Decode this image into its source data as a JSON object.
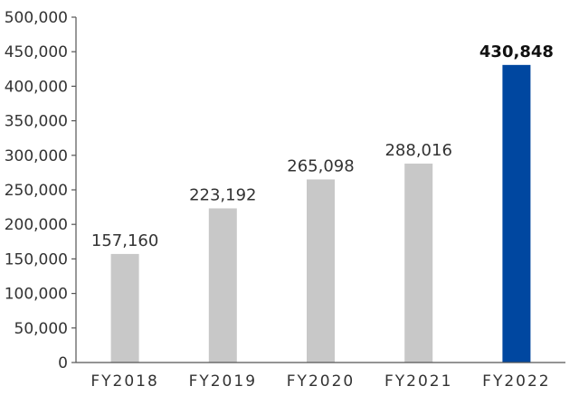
{
  "chart_data": {
    "type": "bar",
    "title": "",
    "xlabel": "",
    "ylabel": "",
    "categories": [
      "FY2018",
      "FY2019",
      "FY2020",
      "FY2021",
      "FY2022"
    ],
    "values": [
      157160,
      223192,
      265098,
      288016,
      430848
    ],
    "value_labels": [
      "157,160",
      "223,192",
      "265,098",
      "288,016",
      "430,848"
    ],
    "highlight_index": 4,
    "ylim": [
      0,
      500000
    ],
    "yticks": [
      0,
      50000,
      100000,
      150000,
      200000,
      250000,
      300000,
      350000,
      400000,
      450000,
      500000
    ],
    "ytick_labels": [
      "0",
      "50,000",
      "100,000",
      "150,000",
      "200,000",
      "250,000",
      "300,000",
      "350,000",
      "400,000",
      "450,000",
      "500,000"
    ],
    "grid": false,
    "colors": {
      "bar": "#c8c8c8",
      "highlight": "#0047a0"
    }
  }
}
